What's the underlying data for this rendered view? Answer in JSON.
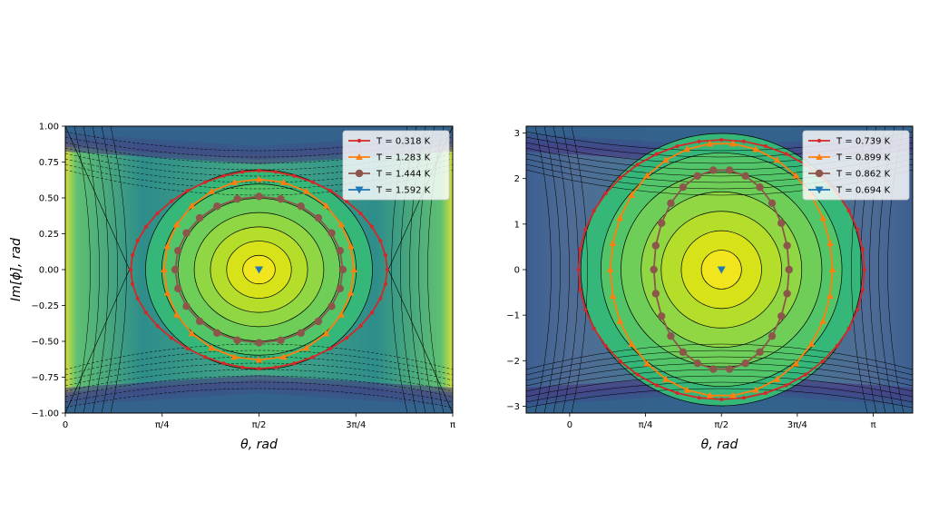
{
  "chart_data": [
    {
      "type": "line",
      "background": "contour",
      "xlabel": "θ, rad",
      "ylabel": "Im[ϕ], rad",
      "xlim": [
        0,
        3.14159
      ],
      "ylim": [
        -1.0,
        1.0
      ],
      "xticks": [
        {
          "value": 0,
          "label": "0"
        },
        {
          "value": 0.7854,
          "label": "π/4"
        },
        {
          "value": 1.5708,
          "label": "π/2"
        },
        {
          "value": 2.3562,
          "label": "3π/4"
        },
        {
          "value": 3.14159,
          "label": "π"
        }
      ],
      "yticks": [
        {
          "value": 1.0,
          "label": "1.00"
        },
        {
          "value": 0.75,
          "label": "0.75"
        },
        {
          "value": 0.5,
          "label": "0.50"
        },
        {
          "value": 0.25,
          "label": "0.25"
        },
        {
          "value": 0.0,
          "label": "0.00"
        },
        {
          "value": -0.25,
          "label": "−0.25"
        },
        {
          "value": -0.5,
          "label": "−0.50"
        },
        {
          "value": -0.75,
          "label": "−0.75"
        },
        {
          "value": -1.0,
          "label": "−1.00"
        }
      ],
      "legend_position": "top-right",
      "series": [
        {
          "name": "T = 0.318 K",
          "color": "#d62728",
          "marker": "circle-small",
          "cx": 1.5708,
          "cy": 0.0,
          "rx": 1.04,
          "ry": 0.69,
          "kind": "lens",
          "points": 40
        },
        {
          "name": "T = 1.283 K",
          "color": "#ff7f0e",
          "marker": "triangle-up",
          "cx": 1.5708,
          "cy": 0.0,
          "rx": 0.77,
          "ry": 0.63,
          "kind": "ellipse",
          "points": 24
        },
        {
          "name": "T = 1.444 K",
          "color": "#8c564b",
          "marker": "circle",
          "cx": 1.5708,
          "cy": 0.0,
          "rx": 0.68,
          "ry": 0.51,
          "kind": "ellipse",
          "points": 24
        },
        {
          "name": "T = 1.592 K",
          "color": "#1f77b4",
          "marker": "triangle-down",
          "cx": 1.5708,
          "cy": 0.0,
          "rx": 0,
          "ry": 0,
          "kind": "point",
          "points": 1
        }
      ]
    },
    {
      "type": "line",
      "background": "contour",
      "xlabel": "θ, rad",
      "ylabel": "",
      "xlim": [
        -0.45,
        3.55
      ],
      "ylim": [
        -3.15,
        3.15
      ],
      "xticks": [
        {
          "value": 0,
          "label": "0"
        },
        {
          "value": 0.7854,
          "label": "π/4"
        },
        {
          "value": 1.5708,
          "label": "π/2"
        },
        {
          "value": 2.3562,
          "label": "3π/4"
        },
        {
          "value": 3.14159,
          "label": "π"
        }
      ],
      "yticks": [
        {
          "value": 3,
          "label": "3"
        },
        {
          "value": 2,
          "label": "2"
        },
        {
          "value": 1,
          "label": "1"
        },
        {
          "value": 0,
          "label": "0"
        },
        {
          "value": -1,
          "label": "−1"
        },
        {
          "value": -2,
          "label": "−2"
        },
        {
          "value": -3,
          "label": "−3"
        }
      ],
      "legend_position": "top-right",
      "series": [
        {
          "name": "T = 0.739 K",
          "color": "#d62728",
          "marker": "circle-small",
          "cx": 1.5708,
          "cy": 0.0,
          "rx": 1.48,
          "ry": 2.85,
          "kind": "ellipse",
          "points": 40
        },
        {
          "name": "T = 0.899 K",
          "color": "#ff7f0e",
          "marker": "triangle-up",
          "cx": 1.5708,
          "cy": 0.0,
          "rx": 1.15,
          "ry": 2.78,
          "kind": "ellipse",
          "points": 30
        },
        {
          "name": "T = 0.862 K",
          "color": "#8c564b",
          "marker": "circle",
          "cx": 1.5708,
          "cy": 0.0,
          "rx": 0.7,
          "ry": 2.2,
          "kind": "ellipse",
          "points": 26
        },
        {
          "name": "T = 0.694 K",
          "color": "#1f77b4",
          "marker": "triangle-down",
          "cx": 1.5708,
          "cy": 0.0,
          "rx": 0,
          "ry": 0,
          "kind": "point",
          "points": 1
        }
      ]
    }
  ]
}
